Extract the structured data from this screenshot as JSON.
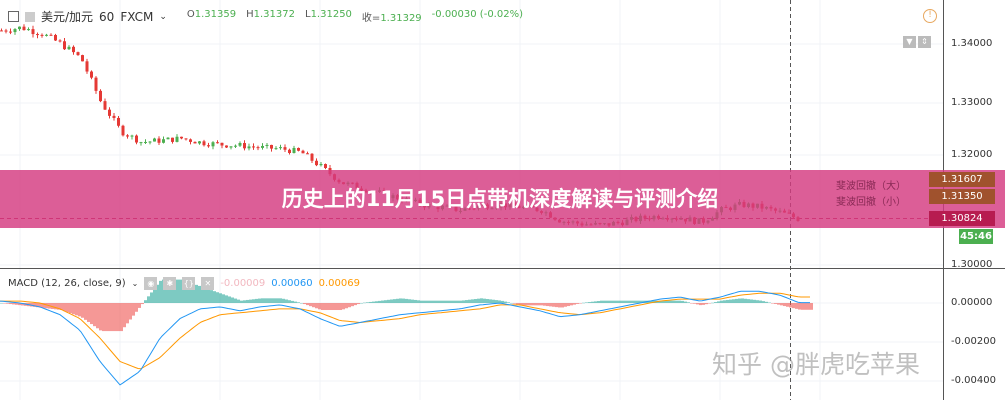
{
  "header": {
    "symbol": "美元/加元",
    "interval": "60",
    "exchange": "FXCM",
    "open_label": "O",
    "open": "1.31359",
    "high_label": "H",
    "high": "1.31372",
    "low_label": "L",
    "low": "1.31250",
    "close_label": "收=",
    "close": "1.31329",
    "change": "-0.00030 (-0.02%)"
  },
  "price_axis": {
    "ticks": [
      "1.34000",
      "1.33000",
      "1.32000",
      "1.30000"
    ]
  },
  "badges": {
    "fib_large_value": "1.31607",
    "fib_small_value": "1.31350",
    "last_price": "1.30824",
    "countdown": "45:46"
  },
  "fib_labels": {
    "large": "斐波回撤（大）",
    "small": "斐波回撤（小）"
  },
  "banner": {
    "title": "历史上的11月15日点带机深度解读与评测介绍"
  },
  "macd": {
    "label": "MACD (12, 26, close, 9)",
    "hist": "-0.00009",
    "macd": "0.00060",
    "signal": "0.00069",
    "axis_ticks": [
      "0.00000",
      "-0.00200",
      "-0.00400"
    ]
  },
  "watermark": "知乎 @胖虎吃苹果",
  "colors": {
    "up": "#26a69a",
    "down": "#ef5350",
    "candle_up": "#4caf50",
    "candle_down": "#e53935",
    "macd_line": "#2196f3",
    "signal_line": "#ff9800",
    "banner": "#d43a80"
  },
  "chart_data": {
    "type": "candlestick",
    "price_closes": [
      1.3423,
      1.3428,
      1.3418,
      1.34,
      1.3375,
      1.33,
      1.3245,
      1.3225,
      1.3228,
      1.3232,
      1.3224,
      1.322,
      1.3218,
      1.3214,
      1.3212,
      1.3205,
      1.3178,
      1.315,
      1.314,
      1.313,
      1.312,
      1.311,
      1.3105,
      1.31,
      1.3108,
      1.311,
      1.3105,
      1.31,
      1.308,
      1.3075,
      1.3072,
      1.3078,
      1.3085,
      1.309,
      1.3085,
      1.3078,
      1.31,
      1.311,
      1.3105,
      1.3095,
      1.3082
    ],
    "macd_line": [
      0.0001,
      0.0,
      -0.0002,
      -0.0006,
      -0.0014,
      -0.003,
      -0.0042,
      -0.0035,
      -0.0018,
      -0.0008,
      -0.0003,
      -0.0002,
      -0.0004,
      -0.0002,
      -0.0001,
      -0.0003,
      -0.0008,
      -0.0012,
      -0.001,
      -0.0008,
      -0.0006,
      -0.0005,
      -0.0004,
      -0.0003,
      -0.0001,
      0.0,
      -0.0002,
      -0.0004,
      -0.0007,
      -0.0006,
      -0.0004,
      -0.0002,
      0.0,
      0.0002,
      0.0003,
      0.0001,
      0.0003,
      0.0006,
      0.0006,
      0.0004,
      0.0
    ],
    "signal_line": [
      0.0001,
      0.0001,
      0.0,
      -0.0003,
      -0.0008,
      -0.0018,
      -0.003,
      -0.0034,
      -0.0028,
      -0.0018,
      -0.001,
      -0.0006,
      -0.0005,
      -0.0004,
      -0.0003,
      -0.0003,
      -0.0005,
      -0.0009,
      -0.001,
      -0.0009,
      -0.0008,
      -0.0006,
      -0.0005,
      -0.0004,
      -0.0003,
      -0.0001,
      -0.0001,
      -0.0003,
      -0.0005,
      -0.0006,
      -0.0005,
      -0.0003,
      -0.0001,
      0.0001,
      0.0002,
      0.0002,
      0.0002,
      0.0004,
      0.0005,
      0.0005,
      0.0003
    ]
  }
}
